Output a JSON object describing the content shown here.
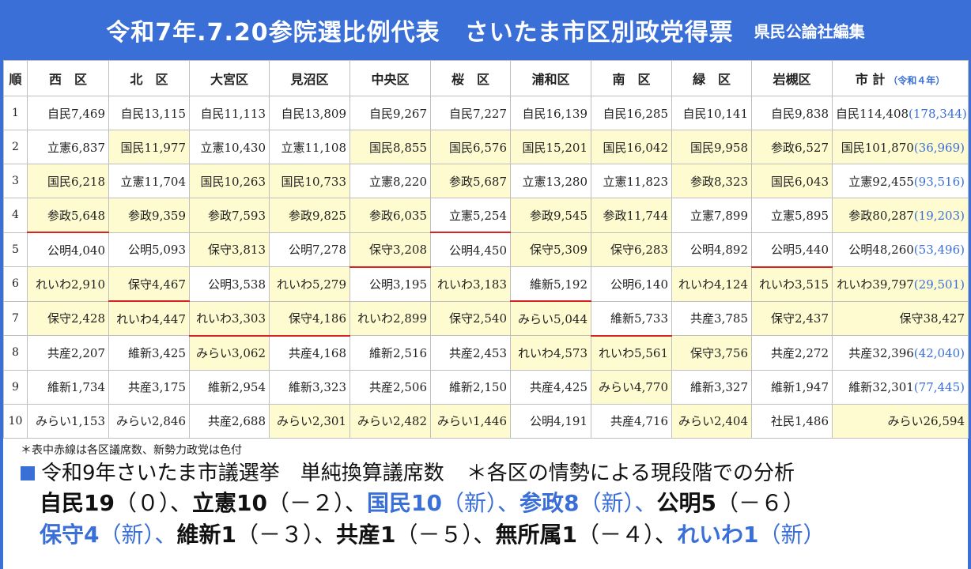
{
  "header": {
    "title": "令和7年.7.20参院選比例代表　さいたま市区別政党得票",
    "editor": "県民公論社編集"
  },
  "table": {
    "rank_header": "順",
    "columns": [
      "西　区",
      "北　区",
      "大宮区",
      "見沼区",
      "中央区",
      "桜　区",
      "浦和区",
      "南　区",
      "緑　区",
      "岩槻区",
      "市 計"
    ],
    "total_note": "（令和４年）",
    "rows": [
      {
        "rank": "1",
        "cells": [
          {
            "t": "自民7,469"
          },
          {
            "t": "自民13,115"
          },
          {
            "t": "自民11,113"
          },
          {
            "t": "自民13,809"
          },
          {
            "t": "自民9,267"
          },
          {
            "t": "自民7,227"
          },
          {
            "t": "自民16,139"
          },
          {
            "t": "自民16,285"
          },
          {
            "t": "自民10,141"
          },
          {
            "t": "自民9,838"
          },
          {
            "t": "自民114,408",
            "p": "(178,344)"
          }
        ]
      },
      {
        "rank": "2",
        "cells": [
          {
            "t": "立憲6,837"
          },
          {
            "t": "国民11,977",
            "h": 1
          },
          {
            "t": "立憲10,430"
          },
          {
            "t": "立憲11,108"
          },
          {
            "t": "国民8,855",
            "h": 1
          },
          {
            "t": "国民6,576",
            "h": 1
          },
          {
            "t": "国民15,201",
            "h": 1
          },
          {
            "t": "国民16,042",
            "h": 1
          },
          {
            "t": "国民9,958",
            "h": 1
          },
          {
            "t": "参政6,527",
            "h": 1
          },
          {
            "t": "国民101,870",
            "p": "(36,969)",
            "h": 1
          }
        ]
      },
      {
        "rank": "3",
        "cells": [
          {
            "t": "国民6,218",
            "h": 1
          },
          {
            "t": "立憲11,704"
          },
          {
            "t": "国民10,263",
            "h": 1
          },
          {
            "t": "国民10,733",
            "h": 1
          },
          {
            "t": "立憲8,220"
          },
          {
            "t": "参政5,687",
            "h": 1
          },
          {
            "t": "立憲13,280"
          },
          {
            "t": "立憲11,823"
          },
          {
            "t": "参政8,323",
            "h": 1
          },
          {
            "t": "国民6,043",
            "h": 1
          },
          {
            "t": "立憲92,455",
            "p": "(93,516)"
          }
        ]
      },
      {
        "rank": "4",
        "cells": [
          {
            "t": "参政5,648",
            "h": 1,
            "r": 1
          },
          {
            "t": "参政9,359",
            "h": 1
          },
          {
            "t": "参政7,593",
            "h": 1
          },
          {
            "t": "参政9,825",
            "h": 1
          },
          {
            "t": "参政6,035",
            "h": 1
          },
          {
            "t": "立憲5,254",
            "r": 1
          },
          {
            "t": "参政9,545",
            "h": 1
          },
          {
            "t": "参政11,744",
            "h": 1
          },
          {
            "t": "立憲7,899"
          },
          {
            "t": "立憲5,895"
          },
          {
            "t": "参政80,287",
            "p": "(19,203)",
            "h": 1
          }
        ]
      },
      {
        "rank": "5",
        "cells": [
          {
            "t": "公明4,040"
          },
          {
            "t": "公明5,093"
          },
          {
            "t": "保守3,813",
            "h": 1
          },
          {
            "t": "公明7,278"
          },
          {
            "t": "保守3,208",
            "h": 1,
            "r": 1
          },
          {
            "t": "公明4,450"
          },
          {
            "t": "保守5,309",
            "h": 1
          },
          {
            "t": "保守6,283",
            "h": 1
          },
          {
            "t": "公明4,892"
          },
          {
            "t": "公明5,440",
            "r": 1
          },
          {
            "t": "公明48,260",
            "p": "(53,496)"
          }
        ]
      },
      {
        "rank": "6",
        "cells": [
          {
            "t": "れいわ2,910",
            "h": 1
          },
          {
            "t": "保守4,467",
            "h": 1,
            "r": 1
          },
          {
            "t": "公明3,538"
          },
          {
            "t": "れいわ5,279",
            "h": 1
          },
          {
            "t": "公明3,195"
          },
          {
            "t": "れいわ3,183",
            "h": 1
          },
          {
            "t": "維新5,192",
            "r": 1
          },
          {
            "t": "公明6,140"
          },
          {
            "t": "れいわ4,124",
            "h": 1
          },
          {
            "t": "れいわ3,515",
            "h": 1
          },
          {
            "t": "れいわ39,797",
            "p": "(29,501)",
            "h": 1
          }
        ]
      },
      {
        "rank": "7",
        "cells": [
          {
            "t": "保守2,428",
            "h": 1
          },
          {
            "t": "れいわ4,447",
            "h": 1
          },
          {
            "t": "れいわ3,303",
            "h": 1,
            "r": 1
          },
          {
            "t": "保守4,186",
            "h": 1,
            "r": 1
          },
          {
            "t": "れいわ2,899",
            "h": 1
          },
          {
            "t": "保守2,540",
            "h": 1
          },
          {
            "t": "みらい5,044",
            "h": 1
          },
          {
            "t": "維新5,733",
            "r": 1
          },
          {
            "t": "共産3,785"
          },
          {
            "t": "保守2,437",
            "h": 1
          },
          {
            "t": "保守38,427",
            "h": 1
          }
        ]
      },
      {
        "rank": "8",
        "cells": [
          {
            "t": "共産2,207"
          },
          {
            "t": "維新3,425"
          },
          {
            "t": "みらい3,062",
            "h": 1
          },
          {
            "t": "共産4,168"
          },
          {
            "t": "維新2,516"
          },
          {
            "t": "共産2,453"
          },
          {
            "t": "れいわ4,573",
            "h": 1
          },
          {
            "t": "れいわ5,561",
            "h": 1
          },
          {
            "t": "保守3,756",
            "h": 1
          },
          {
            "t": "共産2,272"
          },
          {
            "t": "共産32,396",
            "p": "(42,040)"
          }
        ]
      },
      {
        "rank": "9",
        "cells": [
          {
            "t": "維新1,734"
          },
          {
            "t": "共産3,175"
          },
          {
            "t": "維新2,954"
          },
          {
            "t": "維新3,323"
          },
          {
            "t": "共産2,506"
          },
          {
            "t": "維新2,150"
          },
          {
            "t": "共産4,425"
          },
          {
            "t": "みらい4,770",
            "h": 1
          },
          {
            "t": "維新3,327"
          },
          {
            "t": "維新1,947"
          },
          {
            "t": "維新32,301",
            "p": "(77,445)"
          }
        ]
      },
      {
        "rank": "10",
        "cells": [
          {
            "t": "みらい1,153"
          },
          {
            "t": "みらい2,846"
          },
          {
            "t": "共産2,688"
          },
          {
            "t": "みらい2,301",
            "h": 1
          },
          {
            "t": "みらい2,482",
            "h": 1
          },
          {
            "t": "みらい1,446",
            "h": 1
          },
          {
            "t": "公明4,191"
          },
          {
            "t": "共産4,716"
          },
          {
            "t": "みらい2,404",
            "h": 1
          },
          {
            "t": "社民1,486"
          },
          {
            "t": "みらい26,594",
            "h": 1
          }
        ]
      }
    ]
  },
  "footnote": "＊表中赤線は各区議席数、新勢力政党は色付",
  "subheading": {
    "left": "令和9年さいたま市議選挙　単純換算議席数",
    "right": "＊各区の情勢による現段階での分析"
  },
  "seat_lines": [
    [
      {
        "t": "自民19",
        "c": "dark",
        "b": 1
      },
      {
        "t": "（０）、",
        "c": "dark"
      },
      {
        "t": "立憲10",
        "c": "dark",
        "b": 1
      },
      {
        "t": "（－２）、",
        "c": "dark"
      },
      {
        "t": "国民10",
        "c": "blue",
        "b": 1
      },
      {
        "t": "（新）、",
        "c": "blue"
      },
      {
        "t": "参政8",
        "c": "blue",
        "b": 1
      },
      {
        "t": "（新）、",
        "c": "blue"
      },
      {
        "t": "公明5",
        "c": "dark",
        "b": 1
      },
      {
        "t": "（－６）",
        "c": "dark"
      }
    ],
    [
      {
        "t": "保守4",
        "c": "blue",
        "b": 1
      },
      {
        "t": "（新）、",
        "c": "blue"
      },
      {
        "t": "維新1",
        "c": "dark",
        "b": 1
      },
      {
        "t": "（－３）、",
        "c": "dark"
      },
      {
        "t": "共産1",
        "c": "dark",
        "b": 1
      },
      {
        "t": "（－５）、",
        "c": "dark"
      },
      {
        "t": "無所属1",
        "c": "dark",
        "b": 1
      },
      {
        "t": "（－４）、",
        "c": "dark"
      },
      {
        "t": "れいわ1",
        "c": "blue",
        "b": 1
      },
      {
        "t": "（新）",
        "c": "blue"
      }
    ]
  ]
}
